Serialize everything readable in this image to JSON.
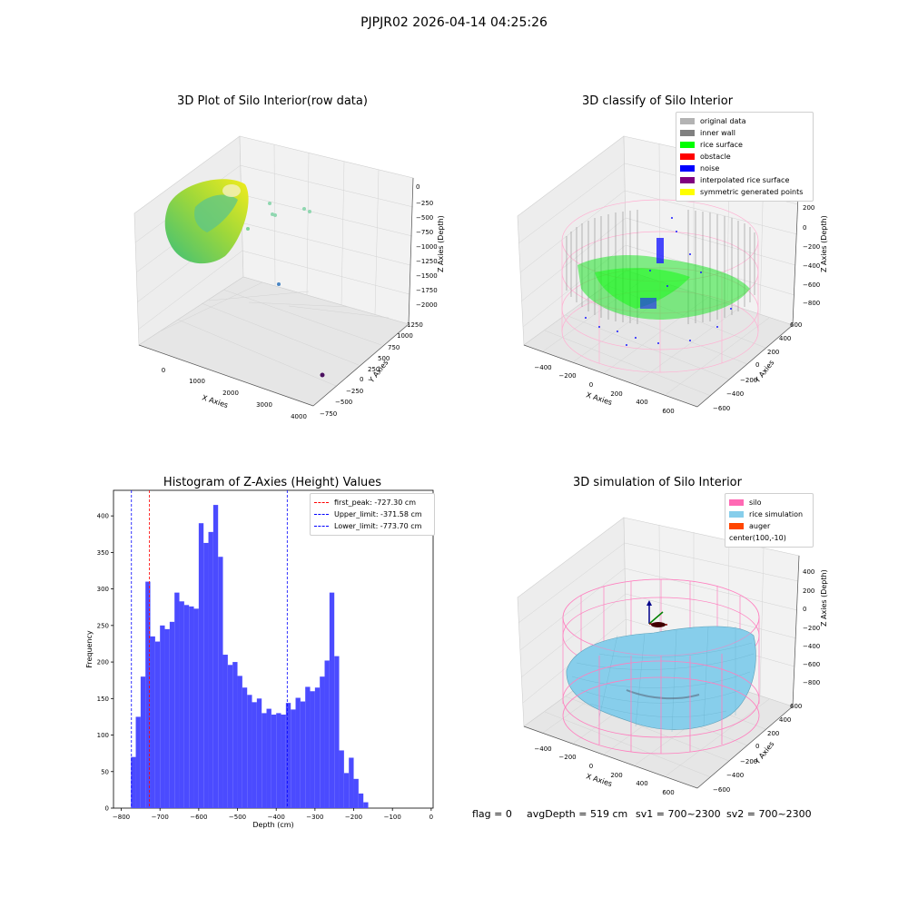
{
  "suptitle": "PJPJR02 2026-04-14 04:25:26",
  "panels": {
    "raw": {
      "title": "3D Plot of Silo Interior(row data)",
      "xlabel": "X Axies",
      "ylabel": "Y Axies",
      "zlabel": "Z Axies (Depth)",
      "xticks": [
        "0",
        "1000",
        "2000",
        "3000",
        "4000"
      ],
      "yticks": [
        "1250",
        "1000",
        "750",
        "500",
        "250",
        "0",
        "−250",
        "−500",
        "−750"
      ],
      "zticks": [
        "0",
        "−250",
        "−500",
        "−750",
        "−1000",
        "−1250",
        "−1500",
        "−1750",
        "−2000"
      ]
    },
    "classify": {
      "title": "3D classify of Silo Interior",
      "xlabel": "X Axies",
      "ylabel": "Y Axies",
      "zlabel": "Z Axies (Depth)",
      "xticks": [
        "−400",
        "−200",
        "0",
        "200",
        "400",
        "600"
      ],
      "yticks": [
        "600",
        "400",
        "200",
        "0",
        "−200",
        "−400",
        "−600"
      ],
      "zticks": [
        "200",
        "0",
        "−200",
        "−400",
        "−600",
        "−800"
      ],
      "legend": [
        {
          "label": "original data",
          "color": "#b3b3b3"
        },
        {
          "label": "inner wall",
          "color": "#808080"
        },
        {
          "label": "rice surface",
          "color": "#00ff00"
        },
        {
          "label": "obstacle",
          "color": "#ff0000"
        },
        {
          "label": "noise",
          "color": "#0000ff"
        },
        {
          "label": "interpolated rice surface",
          "color": "#800080"
        },
        {
          "label": "symmetric generated points",
          "color": "#ffff00"
        }
      ]
    },
    "simulation": {
      "title": "3D simulation of Silo Interior",
      "xlabel": "X Axies",
      "ylabel": "Y Axies",
      "zlabel": "Z Axies (Depth)",
      "xticks": [
        "−400",
        "−200",
        "0",
        "200",
        "400",
        "600"
      ],
      "yticks": [
        "600",
        "400",
        "200",
        "0",
        "−200",
        "−400",
        "−600"
      ],
      "zticks": [
        "400",
        "200",
        "0",
        "−200",
        "−400",
        "−600",
        "−800"
      ],
      "legend": [
        {
          "label": "silo",
          "color": "#ff69b4"
        },
        {
          "label": "rice simulation",
          "color": "#87ceeb"
        },
        {
          "label": "auger",
          "color": "#ff4500"
        },
        {
          "label": "center(100,-10)",
          "color": ""
        }
      ]
    }
  },
  "chart_data": {
    "type": "bar",
    "title": "Histogram of Z-Axies (Height) Values",
    "xlabel": "Depth (cm)",
    "ylabel": "Frequency",
    "xlim": [
      -820,
      5
    ],
    "ylim": [
      0,
      435
    ],
    "xticks": [
      -800,
      -700,
      -600,
      -500,
      -400,
      -300,
      -200,
      -100,
      0
    ],
    "yticks": [
      0,
      50,
      100,
      150,
      200,
      250,
      300,
      350,
      400
    ],
    "bin_start": -775,
    "bin_width": 12.5,
    "values": [
      70,
      125,
      180,
      310,
      235,
      228,
      250,
      245,
      255,
      295,
      283,
      278,
      276,
      273,
      390,
      363,
      378,
      415,
      344,
      210,
      196,
      200,
      181,
      165,
      155,
      145,
      150,
      130,
      136,
      128,
      130,
      128,
      144,
      135,
      151,
      146,
      166,
      160,
      165,
      180,
      202,
      295,
      208,
      79,
      48,
      69,
      40,
      20,
      8
    ],
    "bar_color": "#4b4bff",
    "legend_position": "top-right",
    "vlines": [
      {
        "label": "first_peak: -727.30 cm",
        "x": -727.3,
        "color": "#ff0000"
      },
      {
        "label": "Upper_limit: -371.58 cm",
        "x": -371.58,
        "color": "#0000ff"
      },
      {
        "label": "Lower_limit: -773.70 cm",
        "x": -773.7,
        "color": "#0000ff"
      }
    ]
  },
  "status": {
    "flag": "flag = 0",
    "avg_depth": "avgDepth = 519 cm",
    "sv1": "sv1 = 700~2300",
    "sv2": "sv2 = 700~2300"
  }
}
